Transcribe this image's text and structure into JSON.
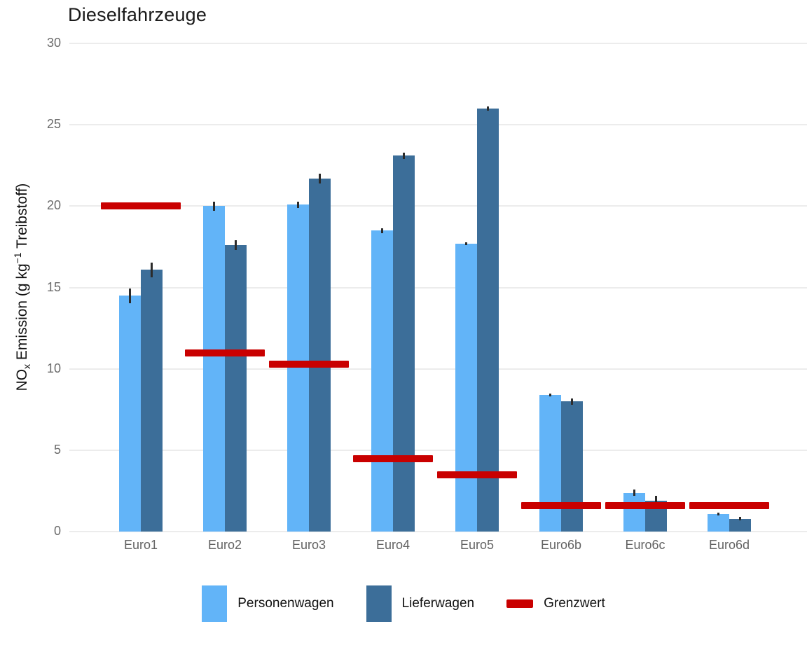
{
  "title": "Dieselfahrzeuge",
  "chart_data": {
    "type": "bar",
    "title": "Dieselfahrzeuge",
    "categories": [
      "Euro1",
      "Euro2",
      "Euro3",
      "Euro4",
      "Euro5",
      "Euro6b",
      "Euro6c",
      "Euro6d"
    ],
    "series": [
      {
        "name": "Personenwagen",
        "color": "#62B4F8",
        "values": [
          14.5,
          20.0,
          20.1,
          18.5,
          17.7,
          8.4,
          2.4,
          1.1
        ],
        "errors": [
          0.45,
          0.3,
          0.2,
          0.15,
          0.1,
          0.1,
          0.2,
          0.1
        ]
      },
      {
        "name": "Lieferwagen",
        "color": "#3C6E99",
        "values": [
          16.1,
          17.6,
          21.7,
          23.1,
          26.0,
          8.0,
          1.9,
          0.8
        ],
        "errors": [
          0.45,
          0.3,
          0.3,
          0.2,
          0.15,
          0.2,
          0.3,
          0.1
        ]
      }
    ],
    "limit_series": {
      "name": "Grenzwert",
      "color": "#C90000",
      "values": [
        20.0,
        11.0,
        10.3,
        4.5,
        3.5,
        1.6,
        1.6,
        1.6
      ]
    },
    "error_bar_color": "#2b2b2b",
    "ylabel_parts": {
      "pre": "NO",
      "sub": "x",
      "mid": " Emission (g kg",
      "sup": "−1",
      "post": " Treibstoff)"
    },
    "yticks": [
      0,
      5,
      10,
      15,
      20,
      25,
      30
    ],
    "ylim": [
      0,
      30
    ],
    "grid": "horizontal-major-only",
    "gridline_color": "#ececec",
    "legend_position": "bottom"
  }
}
